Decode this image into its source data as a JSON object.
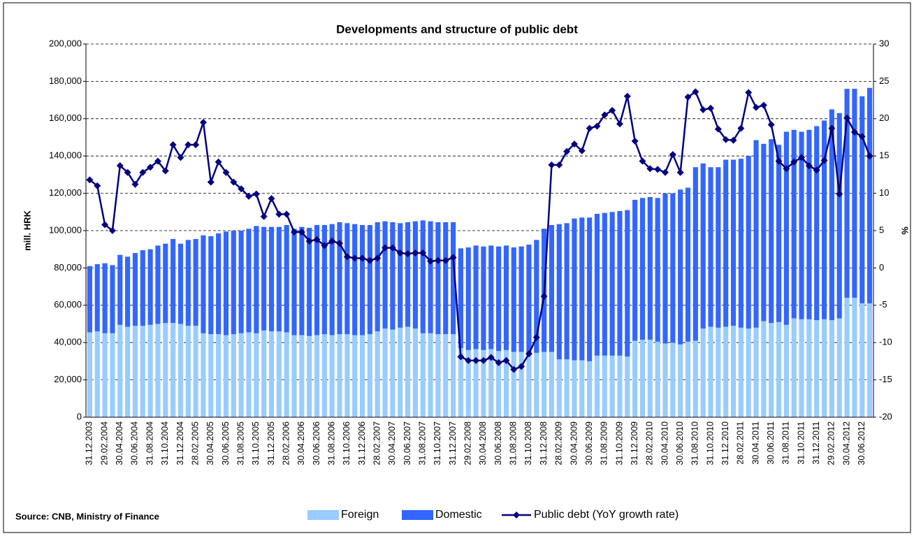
{
  "chart_data": {
    "type": "bar",
    "stacked": true,
    "title": "Developments and structure of public debt",
    "source": "Source: CNB, Ministry of Finance",
    "y_label": "mill. HRK",
    "y2_label": "%",
    "grid": true,
    "legend": "bottom",
    "categories": [
      "31.12.2003",
      null,
      "29.02.2004",
      null,
      "30.04.2004",
      null,
      "30.06.2004",
      null,
      "31.08.2004",
      null,
      "31.10.2004",
      null,
      "31.12.2004",
      null,
      "28.02.2005",
      null,
      "30.04.2005",
      null,
      "30.06.2005",
      null,
      "31.08.2005",
      null,
      "31.10.2005",
      null,
      "31.12.2005",
      null,
      "28.02.2006",
      null,
      "30.04.2006",
      null,
      "30.06.2006",
      null,
      "31.08.2006",
      null,
      "31.10.2006",
      null,
      "31.12.2006",
      null,
      "28.02.2007",
      null,
      "30.04.2007",
      null,
      "30.06.2007",
      null,
      "31.08.2007",
      null,
      "31.10.2007",
      null,
      "31.12.2007",
      null,
      "29.02.2008",
      null,
      "30.04.2008",
      null,
      "30.06.2008",
      null,
      "31.08.2008",
      null,
      "31.10.2008",
      null,
      "31.12.2008",
      null,
      "28.02.2009",
      null,
      "30.04.2009",
      null,
      "30.06.2009",
      null,
      "31.08.2009",
      null,
      "31.10.2009",
      null,
      "31.12.2009",
      null,
      "28.02.2010",
      null,
      "30.04.2010",
      null,
      "30.06.2010",
      null,
      "31.08.2010",
      null,
      "31.10.2010",
      null,
      "31.12.2010",
      null,
      "28.02.2011",
      null,
      "30.04.2011",
      null,
      "30.06.2011",
      null,
      "31.08.2011",
      null,
      "31.10.2011",
      null,
      "31.12.2011",
      null,
      "29.02.2012",
      null,
      "30.04.2012",
      null,
      "30.06.2012",
      null
    ],
    "ylim": [
      0,
      200000
    ],
    "yticks": [
      0,
      {
        "value": 20000,
        "label": "20,000"
      },
      {
        "value": 40000,
        "label": "40,000"
      },
      {
        "value": 60000,
        "label": "60,000"
      },
      {
        "value": 80000,
        "label": "80,000"
      },
      {
        "value": 100000,
        "label": "100,000"
      },
      {
        "value": 120000,
        "label": "120,000"
      },
      {
        "value": 140000,
        "label": "140,000"
      },
      {
        "value": 160000,
        "label": "160,000"
      },
      {
        "value": 180000,
        "label": "180,000"
      },
      {
        "value": 200000,
        "label": "200,000"
      }
    ],
    "y2lim": [
      -20,
      30
    ],
    "y2ticks": [
      -20,
      -15,
      -10,
      -5,
      0,
      5,
      10,
      15,
      20,
      25,
      30
    ],
    "series": [
      {
        "name": "Foreign",
        "type": "bar",
        "color": "#99ccff",
        "values": [
          45500,
          46000,
          45000,
          45000,
          49500,
          48500,
          49000,
          49000,
          49500,
          50000,
          50500,
          50500,
          50000,
          49000,
          49000,
          45000,
          44500,
          44500,
          44000,
          44500,
          45000,
          45500,
          45000,
          46500,
          46000,
          46000,
          45500,
          44000,
          44000,
          43500,
          44000,
          44500,
          44000,
          44500,
          44500,
          44000,
          44000,
          44500,
          46000,
          47500,
          47000,
          48000,
          48500,
          47500,
          45000,
          45000,
          44500,
          44500,
          44500,
          37000,
          36000,
          36500,
          36000,
          36500,
          35500,
          36000,
          35000,
          35000,
          34500,
          34500,
          35000,
          35000,
          31000,
          31000,
          30500,
          30500,
          30000,
          33000,
          33000,
          33000,
          33000,
          32500,
          41000,
          41500,
          41500,
          40500,
          39500,
          40000,
          39000,
          40500,
          41000,
          47500,
          48500,
          48000,
          48500,
          49000,
          48000,
          47500,
          48000,
          51500,
          50500,
          51000,
          49500,
          53000,
          52500,
          52500,
          52000,
          52500,
          52000,
          53000,
          64000,
          64000,
          61000,
          61000
        ]
      },
      {
        "name": "Domestic",
        "type": "bar",
        "color": "#3366ff",
        "values": [
          35500,
          36000,
          37500,
          36500,
          37500,
          37500,
          39000,
          40500,
          40500,
          42000,
          42500,
          45000,
          43000,
          46000,
          46500,
          52500,
          52500,
          54000,
          55500,
          55500,
          55000,
          55500,
          57500,
          55500,
          56000,
          56000,
          57500,
          57000,
          58000,
          58000,
          59000,
          58500,
          59500,
          60000,
          59500,
          59500,
          59000,
          58500,
          58500,
          57500,
          57500,
          56000,
          56000,
          57500,
          60500,
          60000,
          60000,
          60000,
          60000,
          53500,
          55000,
          55500,
          55500,
          55500,
          56000,
          56000,
          56000,
          56500,
          58000,
          60500,
          66000,
          68000,
          72500,
          73000,
          76000,
          76500,
          77000,
          76000,
          76500,
          77000,
          77500,
          78500,
          75500,
          76000,
          76500,
          77000,
          80500,
          80000,
          83000,
          82500,
          93000,
          88500,
          85500,
          86000,
          89500,
          89000,
          90500,
          92500,
          100500,
          95000,
          98500,
          95000,
          103500,
          101000,
          100500,
          101500,
          104000,
          106500,
          113000,
          110000,
          112000,
          112000,
          111000,
          115500
        ]
      },
      {
        "name": "Public debt (YoY growth rate)",
        "type": "line",
        "axis": "y2",
        "color": "#000080",
        "values": [
          11.8,
          11,
          5.8,
          5,
          13.7,
          12.8,
          11.2,
          12.8,
          13.5,
          14.3,
          13,
          16.5,
          14.8,
          16.5,
          16.5,
          19.5,
          11.5,
          14.2,
          12.8,
          11.5,
          10.6,
          9.6,
          9.9,
          6.9,
          9.3,
          7.2,
          7.2,
          4.8,
          4.8,
          3.6,
          3.8,
          3,
          3.6,
          3.3,
          1.5,
          1.3,
          1.3,
          1,
          1.3,
          2.7,
          2.7,
          2,
          1.9,
          2,
          2,
          0.9,
          1,
          1,
          1.4,
          -11.9,
          -12.4,
          -12.4,
          -12.4,
          -12,
          -12.7,
          -12.4,
          -13.6,
          -13.2,
          -11.5,
          -9.3,
          -3.8,
          13.8,
          13.8,
          15.6,
          16.6,
          15.7,
          18.7,
          19,
          20.5,
          21.1,
          19.3,
          23,
          17,
          14.3,
          13.3,
          13.2,
          12.8,
          15.2,
          12.8,
          22.9,
          23.6,
          21.2,
          21.4,
          18.6,
          17.2,
          17.1,
          18.7,
          23.5,
          21.5,
          21.8,
          19.2,
          14.3,
          13.3,
          14.2,
          14.8,
          13.7,
          13.1,
          14.4,
          18.7,
          9.9,
          20.1,
          18.2,
          17.6,
          15
        ]
      }
    ]
  }
}
